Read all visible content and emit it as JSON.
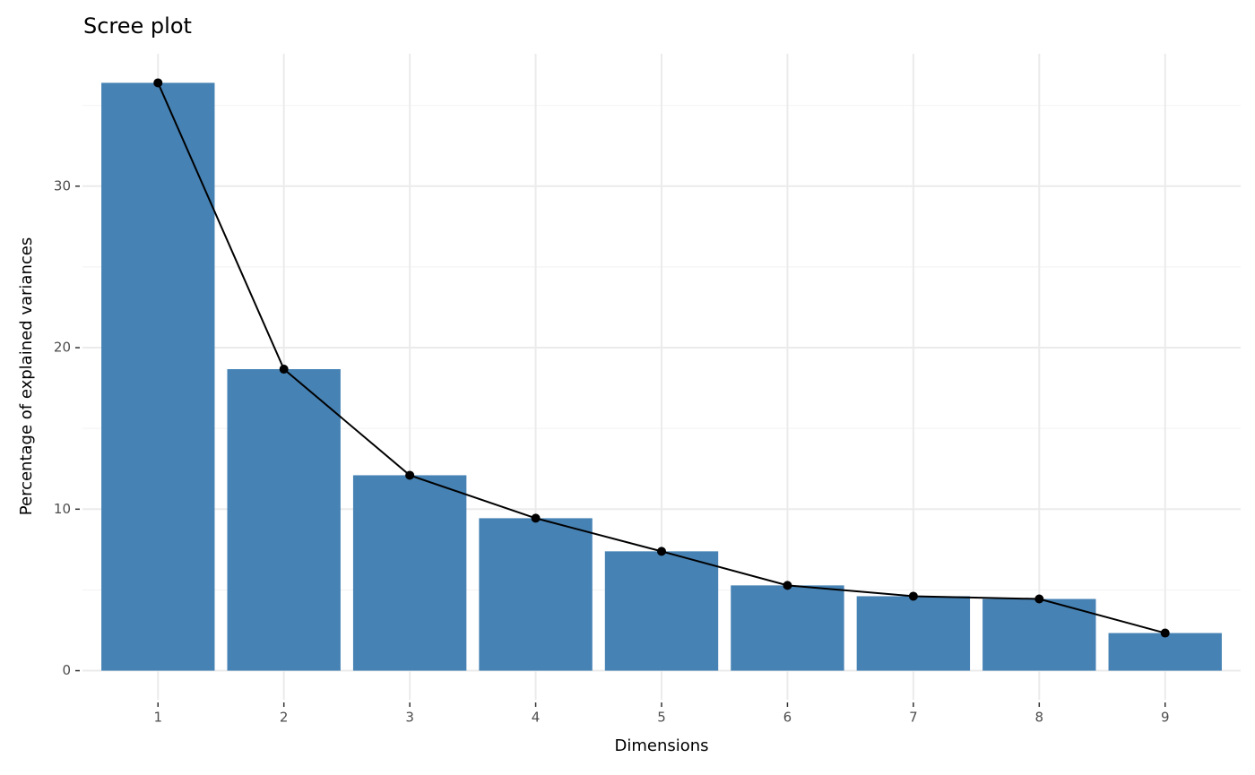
{
  "chart_data": {
    "type": "bar",
    "title": "Scree plot",
    "x_label": "Dimensions",
    "y_label": "Percentage of explained variances",
    "categories": [
      "1",
      "2",
      "3",
      "4",
      "5",
      "6",
      "7",
      "8",
      "9"
    ],
    "values": [
      36.4,
      18.67,
      12.1,
      9.44,
      7.39,
      5.28,
      4.61,
      4.44,
      2.33
    ],
    "color": "#4682b4",
    "line_color": "#000000",
    "ylim": [
      -1.8,
      38.2
    ],
    "yticks": [
      0,
      10,
      20,
      30
    ],
    "minor_yticks": [
      5,
      15,
      25,
      35
    ],
    "grid": true
  }
}
